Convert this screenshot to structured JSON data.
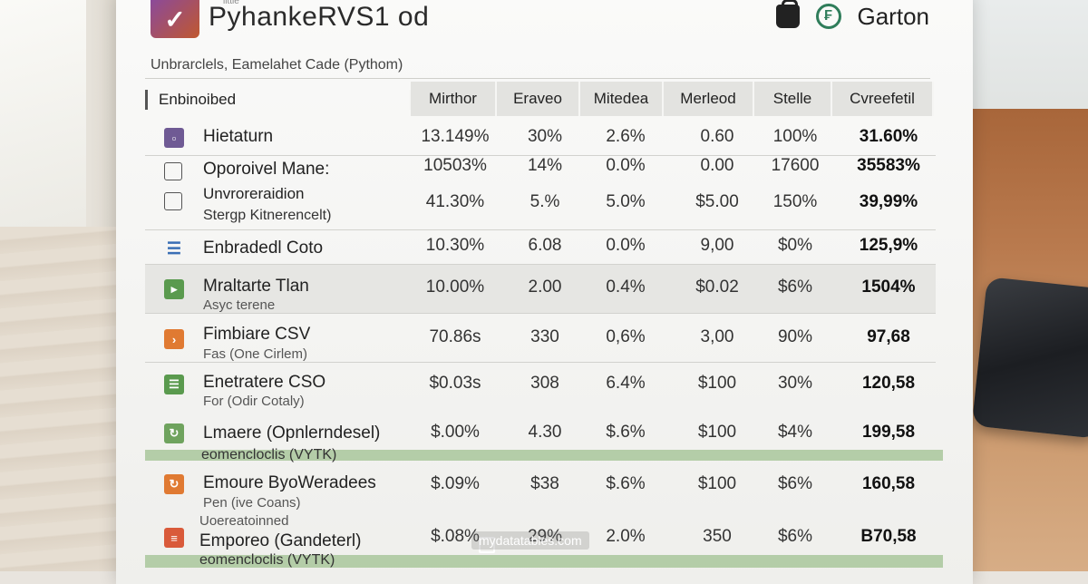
{
  "header": {
    "app_title": "PyhankeRVS1 od",
    "app_title_small": "ilttle",
    "brand_name": "Garton",
    "logo_glyph": "✓",
    "brand_glyph": "₣"
  },
  "subtitle": "Unbrarclels, Eamelahet Cade (Pythom)",
  "table": {
    "columns": [
      "Enbinoibed",
      "Mirthor",
      "Eraveo",
      "Mitedea",
      "Merleod",
      "Stelle",
      "Cvreefetil"
    ],
    "rows": [
      {
        "name": "Hietaturn",
        "sub": "",
        "icon": "square-icon",
        "icon_color": "#6f5a94",
        "values": [
          "13.149%",
          "30%",
          "2.6%",
          "0.60",
          "100%",
          "31.60%"
        ]
      },
      {
        "name": "Oporoivel Mane:",
        "sub": "",
        "icon": "checkbox-icon",
        "icon_color": "",
        "values": [
          "10503%",
          "14%",
          "0.0%",
          "0.00",
          "17600",
          "35583%"
        ]
      },
      {
        "name": "Unvroreraidion",
        "sub": "Stergp Kitnerencelt)",
        "icon": "checkbox-icon",
        "icon_color": "",
        "values": [
          "41.30%",
          "5.%",
          "5.0%",
          "$5.00",
          "150%",
          "39,99%"
        ]
      },
      {
        "name": "Enbradedl Coto",
        "sub": "",
        "icon": "list-icon",
        "icon_color": "#3a6fb5",
        "values": [
          "10.30%",
          "6.08",
          "0.0%",
          "9,00",
          "$0%",
          "125,9%"
        ]
      },
      {
        "name": "Mraltarte Tlan",
        "sub": "Asyc terene",
        "icon": "play-icon",
        "icon_color": "#5a9a4e",
        "values": [
          "10.00%",
          "2.00",
          "0.4%",
          "$0.02",
          "$6%",
          "1504%"
        ]
      },
      {
        "name": "Fimbiare CSV",
        "sub": "Fas (One Cirlem)",
        "icon": "code-icon",
        "icon_color": "#e07a32",
        "values": [
          "70.86s",
          "330",
          "0,6%",
          "3,00",
          "90%",
          "97,68"
        ]
      },
      {
        "name": "Enetratere CSO",
        "sub": "For (Odir Cotaly)",
        "icon": "list-icon",
        "icon_color": "#5a9a4e",
        "values": [
          "$0.03s",
          "308",
          "6.4%",
          "$100",
          "30%",
          "120,58"
        ]
      },
      {
        "name": "Lmaere (Opnlerndesel)",
        "sub": "eomencloclis (VYTK)",
        "icon": "refresh-icon",
        "icon_color": "#6fa35e",
        "values": [
          "$.00%",
          "4.30",
          "$.6%",
          "$100",
          "$4%",
          "199,58"
        ]
      },
      {
        "name": "Emoure ByoWeradees",
        "sub": "Pen (ive Coans)",
        "icon": "refresh-icon",
        "icon_color": "#e07a32",
        "values": [
          "$.09%",
          "$38",
          "$.6%",
          "$100",
          "$6%",
          "160,58"
        ]
      },
      {
        "name": "Emporeo (Gandeterl)",
        "sub": "eomencloclis (VYTK)",
        "pre": "Uoereatoinned",
        "icon": "chart-icon",
        "icon_color": "#d95a3a",
        "values": [
          "$.08%",
          "29%",
          "2.0%",
          "350",
          "$6%",
          "B70,58"
        ]
      }
    ]
  },
  "watermark": "mydatatables.com"
}
